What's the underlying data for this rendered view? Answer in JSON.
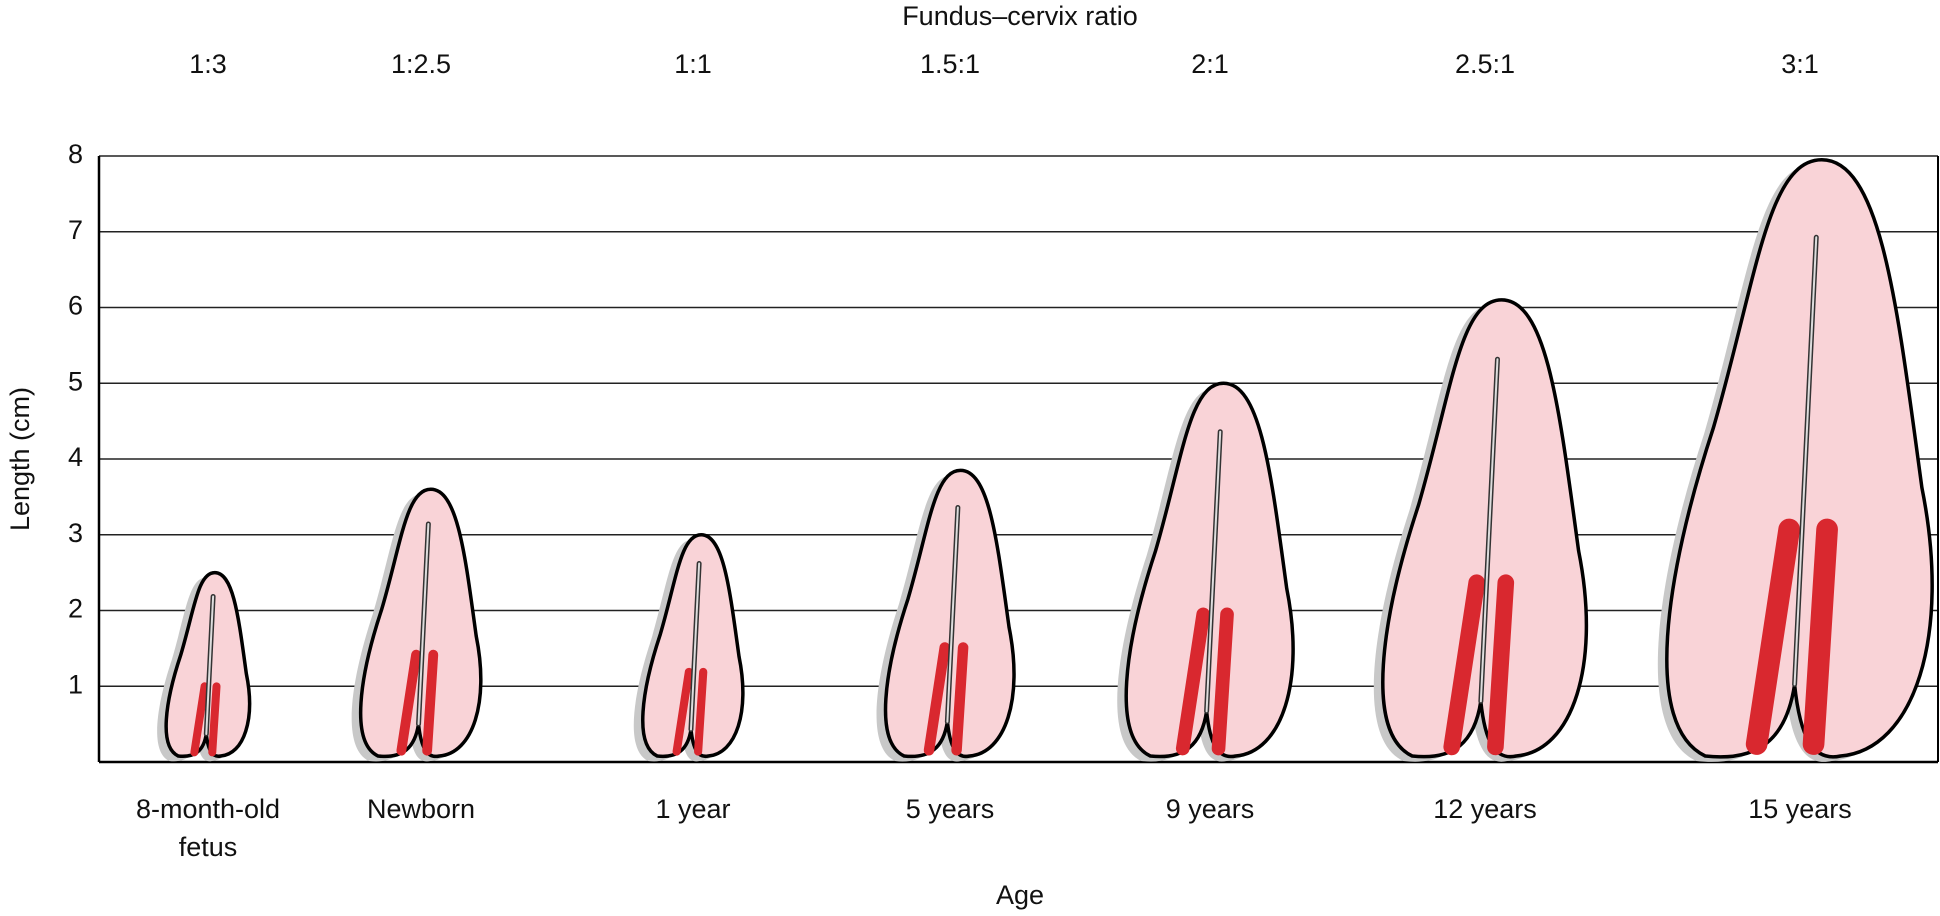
{
  "chart_data": {
    "type": "uterus",
    "title": "Fundus–cervix ratio",
    "ratio_labels": [
      "1:3",
      "1:2.5",
      "1:1",
      "1.5:1",
      "2:1",
      "2.5:1",
      "3:1"
    ],
    "categories": [
      "8-month-old fetus",
      "Newborn",
      "1 year",
      "5 years",
      "9 years",
      "12 years",
      "15 years"
    ],
    "values": [
      2.5,
      3.6,
      3.0,
      3.85,
      5.0,
      6.1,
      7.95
    ],
    "ylim": [
      0,
      8
    ],
    "yticks": [
      1,
      2,
      3,
      4,
      5,
      6,
      7,
      8
    ],
    "ylabel": "Length (cm)",
    "xlabel": "Age",
    "grid": true,
    "color": "#f9d3d7"
  }
}
